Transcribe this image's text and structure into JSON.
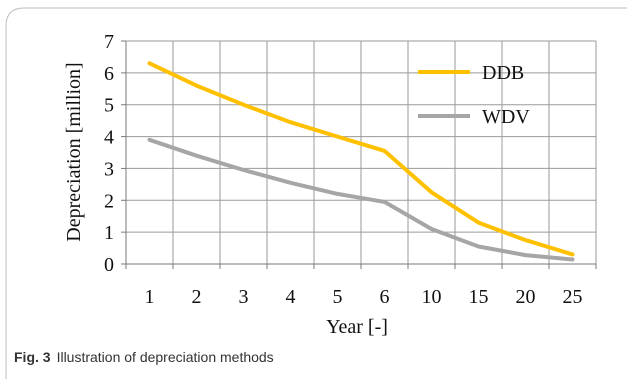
{
  "figure": {
    "label": "Fig. 3",
    "caption": "Illustration of depreciation methods"
  },
  "chart_data": {
    "type": "line",
    "xlabel": "Year [-]",
    "ylabel": "Depreciation [million]",
    "categories": [
      "1",
      "2",
      "3",
      "4",
      "5",
      "6",
      "10",
      "15",
      "20",
      "25"
    ],
    "ylim": [
      0,
      7
    ],
    "yticks": [
      "0",
      "1",
      "2",
      "3",
      "4",
      "5",
      "6",
      "7"
    ],
    "grid": true,
    "legend": "top-right",
    "series": [
      {
        "name": "DDB",
        "color": "#FFC000",
        "values": [
          6.3,
          5.6,
          5.0,
          4.45,
          4.0,
          3.55,
          2.25,
          1.3,
          0.75,
          0.3
        ]
      },
      {
        "name": "WDV",
        "color": "#A6A6A6",
        "values": [
          3.9,
          3.4,
          2.95,
          2.55,
          2.2,
          1.95,
          1.1,
          0.55,
          0.28,
          0.14
        ]
      }
    ]
  }
}
